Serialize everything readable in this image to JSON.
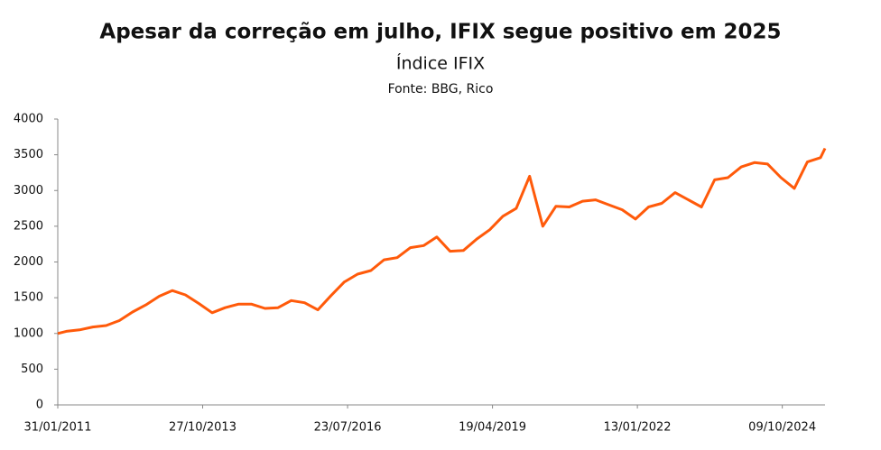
{
  "chart_data": {
    "type": "line",
    "title": "Apesar da correção em julho, IFIX segue positivo em 2025",
    "subtitle": "Índice IFIX",
    "source": "Fonte: BBG, Rico",
    "x": [
      "31/01/2011",
      "31/03/2011",
      "30/06/2011",
      "30/09/2011",
      "31/12/2011",
      "31/03/2012",
      "30/06/2012",
      "30/09/2012",
      "31/12/2012",
      "31/03/2013",
      "30/06/2013",
      "30/09/2013",
      "31/12/2013",
      "31/03/2014",
      "30/06/2014",
      "30/09/2014",
      "31/12/2014",
      "31/03/2015",
      "30/06/2015",
      "30/09/2015",
      "31/12/2015",
      "31/03/2016",
      "30/06/2016",
      "30/09/2016",
      "31/12/2016",
      "31/03/2017",
      "30/06/2017",
      "30/09/2017",
      "31/12/2017",
      "31/03/2018",
      "30/06/2018",
      "30/09/2018",
      "31/12/2018",
      "31/03/2019",
      "30/06/2019",
      "30/09/2019",
      "31/12/2019",
      "31/03/2020",
      "30/06/2020",
      "30/09/2020",
      "31/12/2020",
      "31/03/2021",
      "30/06/2021",
      "30/09/2021",
      "31/12/2021",
      "31/03/2022",
      "30/06/2022",
      "30/09/2022",
      "31/12/2022",
      "31/03/2023",
      "30/06/2023",
      "30/09/2023",
      "31/12/2023",
      "31/03/2024",
      "30/06/2024",
      "30/09/2024",
      "31/12/2024",
      "31/03/2025",
      "30/06/2025",
      "31/07/2025"
    ],
    "series": [
      {
        "name": "IFIX",
        "color": "#ff5a0a",
        "values": [
          1000,
          1030,
          1050,
          1090,
          1110,
          1180,
          1300,
          1400,
          1520,
          1600,
          1540,
          1420,
          1290,
          1360,
          1410,
          1410,
          1350,
          1360,
          1460,
          1430,
          1330,
          1530,
          1720,
          1830,
          1880,
          2030,
          2060,
          2200,
          2230,
          2350,
          2150,
          2160,
          2320,
          2450,
          2640,
          2750,
          3200,
          2500,
          2780,
          2770,
          2850,
          2870,
          2800,
          2730,
          2600,
          2770,
          2820,
          2970,
          2870,
          2770,
          3150,
          3180,
          3330,
          3390,
          3370,
          3180,
          3030,
          3400,
          3460,
          3590
        ]
      }
    ],
    "xlim": [
      "31/01/2011",
      "31/07/2025"
    ],
    "xticks": [
      "31/01/2011",
      "27/10/2013",
      "23/07/2016",
      "19/04/2019",
      "13/01/2022",
      "09/10/2024"
    ],
    "ylim": [
      0,
      4000
    ],
    "yticks": [
      0,
      500,
      1000,
      1500,
      2000,
      2500,
      3000,
      3500,
      4000
    ]
  }
}
